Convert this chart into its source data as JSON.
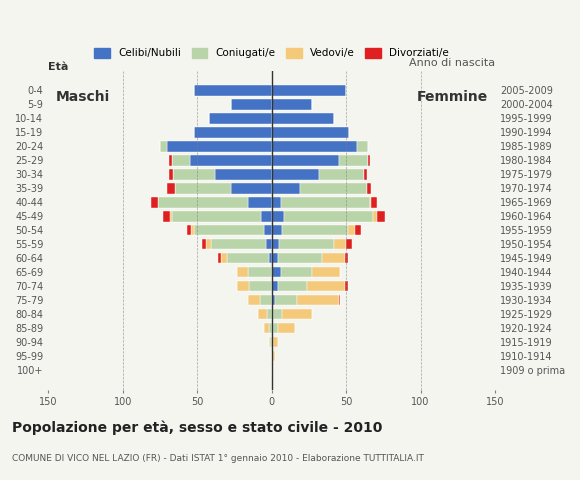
{
  "age_groups": [
    "100+",
    "95-99",
    "90-94",
    "85-89",
    "80-84",
    "75-79",
    "70-74",
    "65-69",
    "60-64",
    "55-59",
    "50-54",
    "45-49",
    "40-44",
    "35-39",
    "30-34",
    "25-29",
    "20-24",
    "15-19",
    "10-14",
    "5-9",
    "0-4"
  ],
  "birth_years": [
    "1909 o prima",
    "1910-1914",
    "1915-1919",
    "1920-1924",
    "1925-1929",
    "1930-1934",
    "1935-1939",
    "1940-1944",
    "1945-1949",
    "1950-1954",
    "1955-1959",
    "1960-1964",
    "1965-1969",
    "1970-1974",
    "1975-1979",
    "1980-1984",
    "1985-1989",
    "1990-1994",
    "1995-1999",
    "2000-2004",
    "2005-2009"
  ],
  "males": {
    "celibe": [
      0,
      0,
      0,
      0,
      0,
      0,
      0,
      0,
      2,
      4,
      5,
      7,
      16,
      27,
      38,
      55,
      70,
      52,
      42,
      27,
      52
    ],
    "coniugato": [
      0,
      0,
      1,
      2,
      3,
      8,
      15,
      16,
      28,
      37,
      47,
      60,
      60,
      38,
      28,
      12,
      5,
      0,
      0,
      0,
      0
    ],
    "vedovo": [
      0,
      0,
      1,
      3,
      6,
      8,
      8,
      7,
      4,
      3,
      2,
      1,
      0,
      0,
      0,
      0,
      0,
      0,
      0,
      0,
      0
    ],
    "divorziato": [
      0,
      0,
      0,
      0,
      0,
      0,
      0,
      0,
      2,
      3,
      3,
      5,
      5,
      5,
      3,
      2,
      0,
      0,
      0,
      0,
      0
    ]
  },
  "females": {
    "nubile": [
      0,
      1,
      0,
      1,
      1,
      2,
      4,
      6,
      4,
      5,
      7,
      8,
      6,
      19,
      32,
      45,
      57,
      52,
      42,
      27,
      50
    ],
    "coniugata": [
      0,
      0,
      1,
      3,
      6,
      15,
      20,
      21,
      30,
      37,
      44,
      60,
      60,
      45,
      30,
      20,
      8,
      0,
      0,
      0,
      0
    ],
    "vedova": [
      0,
      1,
      3,
      12,
      20,
      28,
      25,
      19,
      15,
      8,
      5,
      3,
      1,
      0,
      0,
      0,
      0,
      0,
      0,
      0,
      0
    ],
    "divorziata": [
      0,
      0,
      0,
      0,
      0,
      1,
      2,
      0,
      2,
      4,
      4,
      5,
      4,
      3,
      2,
      1,
      0,
      0,
      0,
      0,
      0
    ]
  },
  "colors": {
    "celibe": "#4472c4",
    "coniugato": "#b8d4a8",
    "vedovo": "#f5c97a",
    "divorziato": "#e02020"
  },
  "title": "Popolazione per età, sesso e stato civile - 2010",
  "subtitle": "COMUNE DI VICO NEL LAZIO (FR) - Dati ISTAT 1° gennaio 2010 - Elaborazione TUTTITALIA.IT",
  "ylabel_left": "Età",
  "ylabel_right": "Anno di nascita",
  "label_maschi": "Maschi",
  "label_femmine": "Femmine",
  "legend_labels": [
    "Celibi/Nubili",
    "Coniugati/e",
    "Vedovi/e",
    "Divorziati/e"
  ],
  "xlim": 150,
  "background_color": "#f5f5f0"
}
